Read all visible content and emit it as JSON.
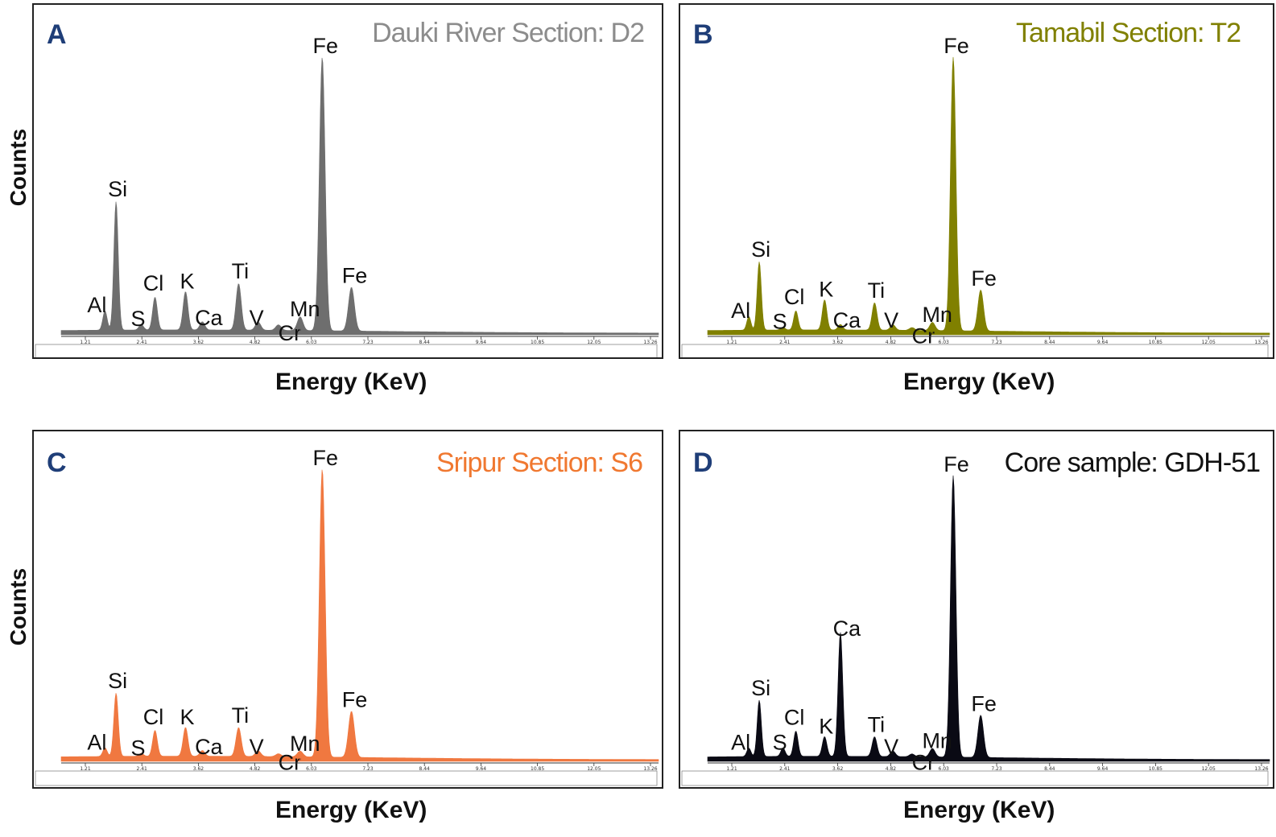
{
  "chart_data": [
    {
      "type": "area",
      "panel_label": "A",
      "title": "Dauki River Section: D2",
      "color": "#6e6e6e",
      "title_color": "#8c8c8c",
      "xlabel": "Energy (KeV)",
      "ylabel": "Counts",
      "xlim": [
        0.5,
        14.0
      ],
      "x_ticks": [
        "1.21",
        "2.41",
        "3.62",
        "4.82",
        "6.03",
        "7.23",
        "8.44",
        "9.64",
        "10.85",
        "12.05",
        "13.26"
      ],
      "peaks": [
        {
          "element": "Al",
          "energy": 1.49,
          "height": 0.07
        },
        {
          "element": "Si",
          "energy": 1.74,
          "height": 0.47
        },
        {
          "element": "S",
          "energy": 2.31,
          "height": 0.02
        },
        {
          "element": "Cl",
          "energy": 2.62,
          "height": 0.12
        },
        {
          "element": "K",
          "energy": 3.31,
          "height": 0.14
        },
        {
          "element": "Ca",
          "energy": 3.69,
          "height": 0.03
        },
        {
          "element": "Ti",
          "energy": 4.51,
          "height": 0.17
        },
        {
          "element": "V",
          "energy": 4.95,
          "height": 0.03
        },
        {
          "element": "Cr",
          "energy": 5.41,
          "height": 0.02
        },
        {
          "element": "Mn",
          "energy": 5.9,
          "height": 0.05
        },
        {
          "element": "Fe",
          "energy": 6.4,
          "height": 1.0
        },
        {
          "element": "Fe",
          "energy": 7.06,
          "height": 0.16
        }
      ]
    },
    {
      "type": "area",
      "panel_label": "B",
      "title": "Tamabil Section: T2",
      "color": "#808000",
      "title_color": "#808000",
      "xlabel": "Energy (KeV)",
      "ylabel": "",
      "xlim": [
        0.5,
        14.0
      ],
      "x_ticks": [
        "1.21",
        "2.41",
        "3.62",
        "4.82",
        "6.03",
        "7.23",
        "8.44",
        "9.64",
        "10.85",
        "12.05",
        "13.26"
      ],
      "peaks": [
        {
          "element": "Al",
          "energy": 1.49,
          "height": 0.05
        },
        {
          "element": "Si",
          "energy": 1.74,
          "height": 0.25
        },
        {
          "element": "S",
          "energy": 2.31,
          "height": 0.01
        },
        {
          "element": "Cl",
          "energy": 2.62,
          "height": 0.07
        },
        {
          "element": "K",
          "energy": 3.31,
          "height": 0.11
        },
        {
          "element": "Ca",
          "energy": 3.69,
          "height": 0.02
        },
        {
          "element": "Ti",
          "energy": 4.51,
          "height": 0.1
        },
        {
          "element": "V",
          "energy": 4.95,
          "height": 0.02
        },
        {
          "element": "Cr",
          "energy": 5.41,
          "height": 0.01
        },
        {
          "element": "Mn",
          "energy": 5.9,
          "height": 0.03
        },
        {
          "element": "Fe",
          "energy": 6.4,
          "height": 1.0
        },
        {
          "element": "Fe",
          "energy": 7.06,
          "height": 0.15
        }
      ]
    },
    {
      "type": "area",
      "panel_label": "C",
      "title": "Sripur Section: S6",
      "color": "#f07840",
      "title_color": "#f07830",
      "xlabel": "Energy (KeV)",
      "ylabel": "Counts",
      "xlim": [
        0.5,
        14.0
      ],
      "x_ticks": [
        "1.21",
        "2.41",
        "3.62",
        "4.82",
        "6.03",
        "7.23",
        "8.44",
        "9.64",
        "10.85",
        "12.05",
        "13.26"
      ],
      "peaks": [
        {
          "element": "Al",
          "energy": 1.49,
          "height": 0.03
        },
        {
          "element": "Si",
          "energy": 1.74,
          "height": 0.22
        },
        {
          "element": "S",
          "energy": 2.31,
          "height": 0.01
        },
        {
          "element": "Cl",
          "energy": 2.62,
          "height": 0.09
        },
        {
          "element": "K",
          "energy": 3.31,
          "height": 0.1
        },
        {
          "element": "Ca",
          "energy": 3.69,
          "height": 0.02
        },
        {
          "element": "Ti",
          "energy": 4.51,
          "height": 0.1
        },
        {
          "element": "V",
          "energy": 4.95,
          "height": 0.02
        },
        {
          "element": "Cr",
          "energy": 5.41,
          "height": 0.01
        },
        {
          "element": "Mn",
          "energy": 5.9,
          "height": 0.02
        },
        {
          "element": "Fe",
          "energy": 6.4,
          "height": 1.0
        },
        {
          "element": "Fe",
          "energy": 7.06,
          "height": 0.16
        }
      ]
    },
    {
      "type": "area",
      "panel_label": "D",
      "title": "Core sample: GDH-51",
      "color": "#0a0a14",
      "title_color": "#111111",
      "xlabel": "Energy (KeV)",
      "ylabel": "",
      "xlim": [
        0.5,
        14.0
      ],
      "x_ticks": [
        "1.21",
        "2.41",
        "3.62",
        "4.82",
        "6.03",
        "7.23",
        "8.44",
        "9.64",
        "10.85",
        "12.05",
        "13.26"
      ],
      "peaks": [
        {
          "element": "Al",
          "energy": 1.49,
          "height": 0.03
        },
        {
          "element": "Si",
          "energy": 1.74,
          "height": 0.2
        },
        {
          "element": "S",
          "energy": 2.31,
          "height": 0.03
        },
        {
          "element": "Cl",
          "energy": 2.62,
          "height": 0.09
        },
        {
          "element": "K",
          "energy": 3.31,
          "height": 0.07
        },
        {
          "element": "Ca",
          "energy": 3.69,
          "height": 0.44
        },
        {
          "element": "Ti",
          "energy": 4.51,
          "height": 0.07
        },
        {
          "element": "V",
          "energy": 4.95,
          "height": 0.02
        },
        {
          "element": "Cr",
          "energy": 5.41,
          "height": 0.01
        },
        {
          "element": "Mn",
          "energy": 5.9,
          "height": 0.03
        },
        {
          "element": "Fe",
          "energy": 6.4,
          "height": 1.0
        },
        {
          "element": "Fe",
          "energy": 7.06,
          "height": 0.15
        }
      ]
    }
  ]
}
